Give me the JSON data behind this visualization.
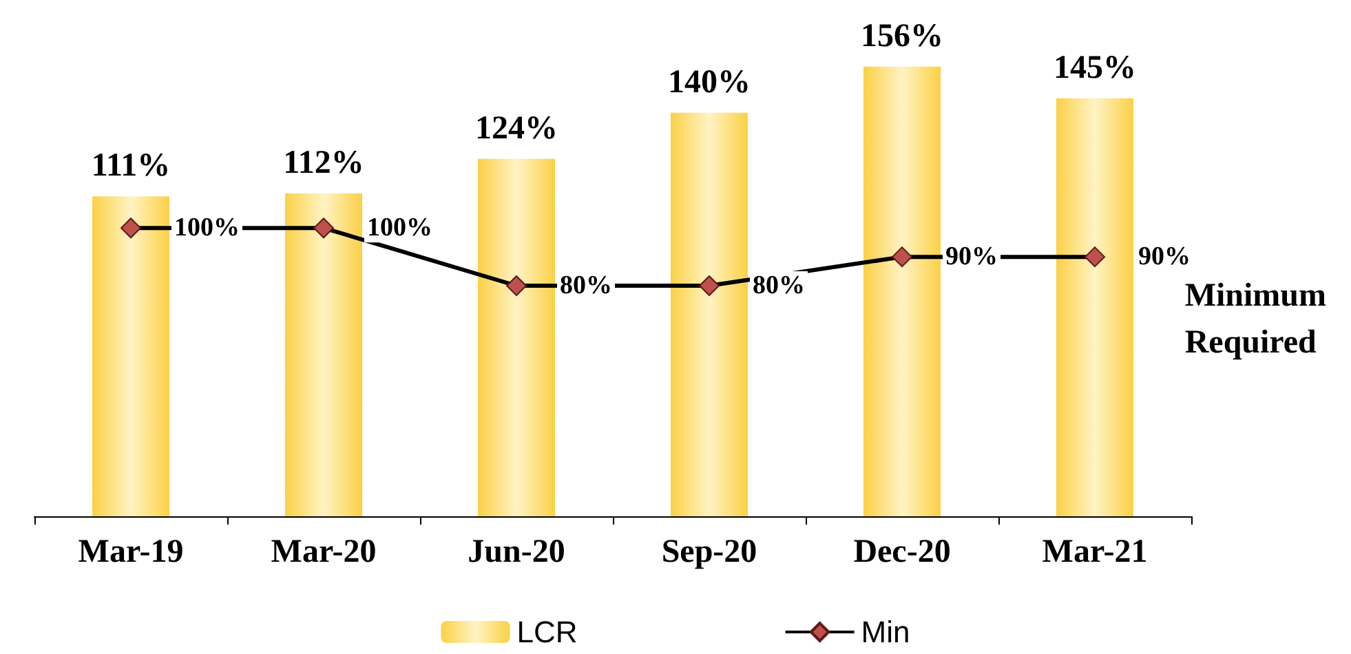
{
  "chart_data": {
    "type": "bar",
    "categories": [
      "Mar-19",
      "Mar-20",
      "Jun-20",
      "Sep-20",
      "Dec-20",
      "Mar-21"
    ],
    "series": [
      {
        "name": "LCR",
        "color": "#fbd046",
        "values": [
          111,
          112,
          124,
          140,
          156,
          145
        ],
        "value_labels": [
          "111%",
          "112%",
          "124%",
          "140%",
          "156%",
          "145%"
        ]
      },
      {
        "name": "Min",
        "type": "line",
        "color": "#000000",
        "marker": "diamond",
        "values": [
          100,
          100,
          80,
          80,
          90,
          90
        ],
        "value_labels": [
          "100%",
          "100%",
          "80%",
          "80%",
          "90%",
          "90%"
        ]
      }
    ],
    "annotations": [
      "Minimum Required"
    ],
    "legend": "bottom"
  }
}
